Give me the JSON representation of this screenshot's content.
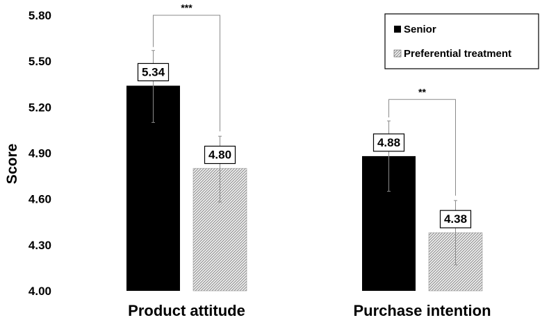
{
  "chart_data": {
    "type": "bar",
    "ylabel": "Score",
    "ylim": [
      4.0,
      5.8
    ],
    "yticks": [
      "4.00",
      "4.30",
      "4.60",
      "4.90",
      "5.20",
      "5.50",
      "5.80"
    ],
    "grid": false,
    "legend_position": "top-right",
    "categories": [
      "Product attitude",
      "Purchase intention"
    ],
    "series": [
      {
        "name": "Senior",
        "color": "#000000",
        "pattern": "solid",
        "values": [
          5.34,
          4.88
        ],
        "labels": [
          "5.34",
          "4.88"
        ],
        "error_low": [
          5.1,
          4.65
        ],
        "error_high": [
          5.57,
          5.11
        ]
      },
      {
        "name": "Preferential treatment",
        "color": "#d9d9d9",
        "pattern": "hatched",
        "values": [
          4.8,
          4.38
        ],
        "labels": [
          "4.80",
          "4.38"
        ],
        "error_low": [
          4.58,
          4.17
        ],
        "error_high": [
          5.01,
          4.59
        ]
      }
    ],
    "annotations": [
      {
        "category": "Product attitude",
        "text": "***",
        "top_value": 5.8
      },
      {
        "category": "Purchase intention",
        "text": "**",
        "top_value": 5.25
      }
    ]
  }
}
